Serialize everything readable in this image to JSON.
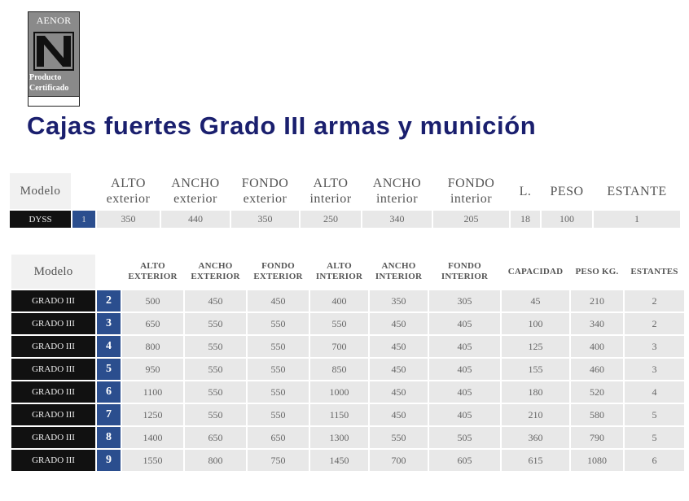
{
  "logo": {
    "brand": "AENOR",
    "caption_line1": "Producto",
    "caption_line2": "Certificado"
  },
  "title": "Cajas fuertes Grado III armas y munición",
  "table1": {
    "headers": {
      "modelo": "Modelo",
      "alto_ext_1": "ALTO",
      "alto_ext_2": "exterior",
      "ancho_ext_1": "ANCHO",
      "ancho_ext_2": "exterior",
      "fondo_ext_1": "FONDO",
      "fondo_ext_2": "exterior",
      "alto_int_1": "ALTO",
      "alto_int_2": "interior",
      "ancho_int_1": "ANCHO",
      "ancho_int_2": "interior",
      "fondo_int_1": "FONDO",
      "fondo_int_2": "interior",
      "l": "L.",
      "peso": "PESO",
      "estante": "ESTANTE"
    },
    "rows": [
      [
        "DYSS",
        "1",
        "350",
        "440",
        "350",
        "250",
        "340",
        "205",
        "18",
        "100",
        "1"
      ]
    ]
  },
  "table2": {
    "headers": {
      "modelo": "Modelo",
      "alto_ext_1": "ALTO",
      "alto_ext_2": "EXTERIOR",
      "ancho_ext_1": "ANCHO",
      "ancho_ext_2": "EXTERIOR",
      "fondo_ext_1": "FONDO",
      "fondo_ext_2": "EXTERIOR",
      "alto_int_1": "ALTO",
      "alto_int_2": "INTERIOR",
      "ancho_int_1": "ANCHO",
      "ancho_int_2": "INTERIOR",
      "fondo_int_1": "FONDO",
      "fondo_int_2": "INTERIOR",
      "capacidad": "CAPACIDAD",
      "peso": "PESO KG.",
      "estantes": "ESTANTES"
    },
    "rows": [
      [
        "GRADO III",
        "2",
        "500",
        "450",
        "450",
        "400",
        "350",
        "305",
        "45",
        "210",
        "2"
      ],
      [
        "GRADO III",
        "3",
        "650",
        "550",
        "550",
        "550",
        "450",
        "405",
        "100",
        "340",
        "2"
      ],
      [
        "GRADO III",
        "4",
        "800",
        "550",
        "550",
        "700",
        "450",
        "405",
        "125",
        "400",
        "3"
      ],
      [
        "GRADO III",
        "5",
        "950",
        "550",
        "550",
        "850",
        "450",
        "405",
        "155",
        "460",
        "3"
      ],
      [
        "GRADO III",
        "6",
        "1100",
        "550",
        "550",
        "1000",
        "450",
        "405",
        "180",
        "520",
        "4"
      ],
      [
        "GRADO III",
        "7",
        "1250",
        "550",
        "550",
        "1150",
        "450",
        "405",
        "210",
        "580",
        "5"
      ],
      [
        "GRADO III",
        "8",
        "1400",
        "650",
        "650",
        "1300",
        "550",
        "505",
        "360",
        "790",
        "5"
      ],
      [
        "GRADO III",
        "9",
        "1550",
        "800",
        "750",
        "1450",
        "700",
        "605",
        "615",
        "1080",
        "6"
      ]
    ]
  }
}
